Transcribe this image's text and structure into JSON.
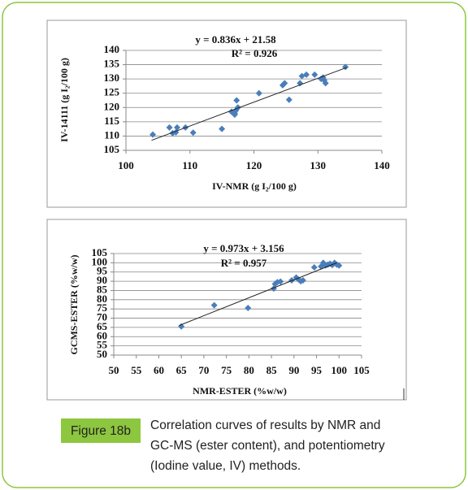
{
  "chart_data": [
    {
      "type": "scatter",
      "annotations": [
        "y = 0.836x + 21.58",
        "R² = 0.926"
      ],
      "x_label": "IV-NMR (g I₂/100 g)",
      "y_label": "IV-14111 (g I₂/100 g)",
      "x": [
        104.2,
        106.8,
        107.3,
        107.8,
        108,
        109.3,
        110.5,
        115,
        116.5,
        117,
        117.2,
        117.3,
        117.5,
        117,
        120.8,
        124.5,
        124.8,
        125.5,
        127.2,
        127.5,
        128.2,
        129.5,
        130.5,
        131,
        131.2,
        130.8,
        134.3
      ],
      "values": [
        110.5,
        113,
        111,
        111.3,
        113,
        113,
        111.2,
        112.5,
        118.5,
        118,
        119,
        122.5,
        120,
        117.5,
        125,
        127.8,
        128.5,
        122.7,
        128.5,
        131,
        131.5,
        131.5,
        130,
        129.5,
        128.5,
        130.5,
        134.2
      ],
      "color": "#4a7ebb",
      "trendline": {
        "x": [
          104,
          134.5
        ],
        "values": [
          108.5,
          134
        ]
      },
      "xlim": [
        100,
        140
      ],
      "xticks": [
        100,
        110,
        120,
        130,
        140
      ],
      "ylim": [
        105,
        140
      ],
      "yticks": [
        105,
        110,
        115,
        120,
        125,
        130,
        135,
        140
      ],
      "grid": true
    },
    {
      "type": "scatter",
      "annotations": [
        "y = 0.973x + 3.156",
        "R² = 0.957"
      ],
      "x_label": "NMR-ESTER (%w/w)",
      "y_label": "GCMS-ESTER (%w/w)",
      "x": [
        65,
        72.3,
        79.8,
        85.5,
        85.8,
        86.3,
        87,
        89.5,
        90.5,
        91,
        91.5,
        92,
        94.5,
        96,
        96.5,
        97,
        97.5,
        98,
        98.5,
        99,
        99.5,
        100
      ],
      "values": [
        65.5,
        77,
        75.5,
        86,
        88.5,
        89.5,
        89.8,
        90.5,
        92,
        91,
        90,
        90.5,
        97.5,
        98,
        100,
        98.5,
        99,
        99.5,
        98.8,
        100,
        99,
        98.5
      ],
      "color": "#4a7ebb",
      "trendline": {
        "x": [
          64.5,
          99.5
        ],
        "values": [
          66,
          100
        ]
      },
      "xlim": [
        50,
        105
      ],
      "xticks": [
        50,
        55,
        60,
        65,
        70,
        75,
        80,
        85,
        90,
        95,
        100,
        105
      ],
      "ylim": [
        50,
        105
      ],
      "yticks": [
        50,
        55,
        60,
        65,
        70,
        75,
        80,
        85,
        90,
        95,
        100,
        105
      ],
      "grid": true
    }
  ],
  "caption": {
    "label": "Figure 18b",
    "lines": [
      "Correlation curves of results by NMR and",
      "GC-MS (ester content), and potentiometry",
      "(Iodine value, IV) methods."
    ]
  }
}
